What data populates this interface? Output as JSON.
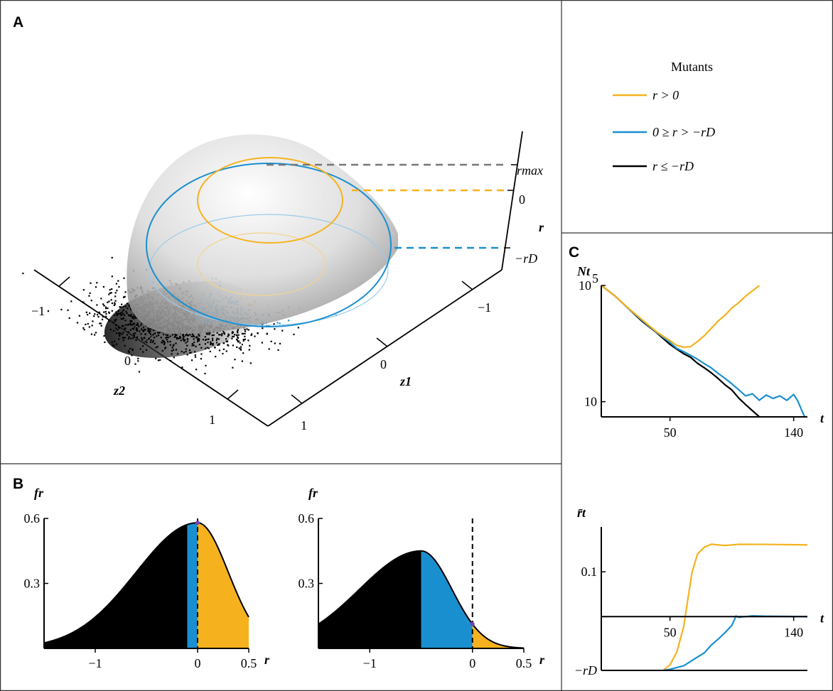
{
  "colors": {
    "orange": "#f5b21e",
    "blue": "#1a8fd0",
    "black": "#000000",
    "gray": "#888888"
  },
  "panels": {
    "A": "A",
    "B": "B",
    "C": "C"
  },
  "legend": {
    "title": "Mutants",
    "items": [
      {
        "label": "r > 0",
        "color": "#f5b21e"
      },
      {
        "label": "0 ≥ r > −rD",
        "color": "#1a8fd0"
      },
      {
        "label": "r ≤ −rD",
        "color": "#000000"
      }
    ]
  },
  "chart_data": [
    {
      "id": "A",
      "type": "surface",
      "axes": {
        "z1_label": "z1",
        "z2_label": "z2",
        "r_label": "r",
        "z1_ticks": [
          "−1",
          "0",
          "1"
        ],
        "z2_ticks": [
          "−1",
          "0",
          "1"
        ],
        "r_ticks": [
          "rmax",
          "0",
          "−rD"
        ]
      },
      "levels": [
        {
          "name": "rmax",
          "color": "#888888"
        },
        {
          "name": "0",
          "color": "#f5b21e"
        },
        {
          "name": "−rD",
          "color": "#1a8fd0"
        }
      ]
    },
    {
      "id": "B-left",
      "type": "area",
      "ylabel": "fr",
      "xlabel": "r",
      "xlim": [
        -1.5,
        0.5
      ],
      "ylim": [
        0,
        0.6
      ],
      "xticks": [
        -1,
        0,
        0.5
      ],
      "yticks": [
        0.3,
        0.6
      ],
      "xtick_labels": [
        "−1",
        "0",
        "0.5"
      ],
      "ytick_labels": [
        "0.3",
        "0.6"
      ],
      "density": {
        "mean": 0,
        "sd": 0.3,
        "left_scale": 2,
        "peak": 0.58
      },
      "regions": [
        {
          "from": -1.5,
          "to": -0.1,
          "color": "#000000"
        },
        {
          "from": -0.1,
          "to": 0,
          "color": "#1a8fd0"
        },
        {
          "from": 0,
          "to": 0.5,
          "color": "#f5b21e"
        }
      ],
      "dashed_at": 0
    },
    {
      "id": "B-right",
      "type": "area",
      "ylabel": "fr",
      "xlabel": "r",
      "xlim": [
        -1.5,
        0.5
      ],
      "ylim": [
        0,
        0.6
      ],
      "xticks": [
        -1,
        0,
        0.5
      ],
      "yticks": [
        0.3,
        0.6
      ],
      "xtick_labels": [
        "−1",
        "0",
        "0.5"
      ],
      "ytick_labels": [
        "0.3",
        "0.6"
      ],
      "density": {
        "mean": -0.5,
        "sd": 0.3,
        "left_scale": 2,
        "peak": 0.45
      },
      "regions": [
        {
          "from": -1.5,
          "to": -0.5,
          "color": "#000000"
        },
        {
          "from": -0.5,
          "to": 0,
          "color": "#1a8fd0"
        },
        {
          "from": 0,
          "to": 0.5,
          "color": "#f5b21e"
        }
      ],
      "dashed_at": 0
    },
    {
      "id": "C-top",
      "type": "line",
      "ylabel": "Nt",
      "xlabel": "t",
      "yscale": "log",
      "xlim": [
        0,
        150
      ],
      "ylim": [
        3,
        100000
      ],
      "xticks": [
        50,
        140
      ],
      "xtick_labels": [
        "50",
        "140"
      ],
      "yticks": [
        10,
        100000
      ],
      "ytick_labels": [
        "10",
        "10^5"
      ],
      "series": [
        {
          "color": "#000000",
          "x": [
            0,
            10,
            20,
            30,
            40,
            50,
            55,
            60,
            65,
            70,
            75,
            80,
            85,
            90,
            95,
            100,
            105,
            110,
            115
          ],
          "y": [
            100000,
            40000,
            15000,
            6000,
            2500,
            1000,
            650,
            450,
            320,
            220,
            140,
            95,
            65,
            40,
            25,
            14,
            8,
            5,
            3
          ]
        },
        {
          "color": "#1a8fd0",
          "x": [
            0,
            10,
            20,
            30,
            40,
            50,
            55,
            60,
            65,
            70,
            75,
            80,
            85,
            90,
            95,
            100,
            105,
            110,
            115,
            120,
            125,
            130,
            135,
            140,
            143,
            146,
            148
          ],
          "y": [
            100000,
            40000,
            15000,
            6000,
            2500,
            1100,
            700,
            500,
            400,
            300,
            200,
            140,
            100,
            60,
            40,
            25,
            15,
            18,
            12,
            16,
            13,
            15,
            12,
            18,
            10,
            5,
            3
          ]
        },
        {
          "color": "#f5b21e",
          "x": [
            0,
            10,
            20,
            30,
            40,
            50,
            55,
            60,
            65,
            70,
            75,
            80,
            85,
            90,
            95,
            100,
            105,
            110,
            115
          ],
          "y": [
            100000,
            40000,
            15000,
            6000,
            2500,
            1200,
            900,
            800,
            850,
            1200,
            1900,
            3200,
            5500,
            9500,
            16000,
            27000,
            45000,
            70000,
            100000
          ]
        }
      ]
    },
    {
      "id": "C-bottom",
      "type": "line",
      "ylabel": "r̄t",
      "xlabel": "t",
      "xlim": [
        0,
        150
      ],
      "ylim": [
        -0.12,
        0.2
      ],
      "xticks": [
        50,
        140
      ],
      "xtick_labels": [
        "50",
        "140"
      ],
      "yticks": [
        0.1,
        -0.12
      ],
      "ytick_labels": [
        "0.1",
        "−rD"
      ],
      "series": [
        {
          "color": "#f5b21e",
          "x": [
            45,
            50,
            55,
            60,
            63,
            66,
            70,
            75,
            80,
            90,
            100,
            120,
            150
          ],
          "y": [
            -0.12,
            -0.11,
            -0.08,
            -0.02,
            0.04,
            0.1,
            0.14,
            0.155,
            0.16,
            0.16,
            0.16,
            0.16,
            0.16
          ]
        },
        {
          "color": "#1a8fd0",
          "x": [
            45,
            50,
            55,
            60,
            65,
            70,
            75,
            80,
            85,
            90,
            95,
            98,
            100,
            110,
            120,
            150
          ],
          "y": [
            -0.12,
            -0.12,
            -0.115,
            -0.11,
            -0.1,
            -0.09,
            -0.08,
            -0.065,
            -0.05,
            -0.035,
            -0.02,
            0.0,
            0.0,
            0.0,
            0.0,
            0.0
          ]
        }
      ]
    }
  ]
}
